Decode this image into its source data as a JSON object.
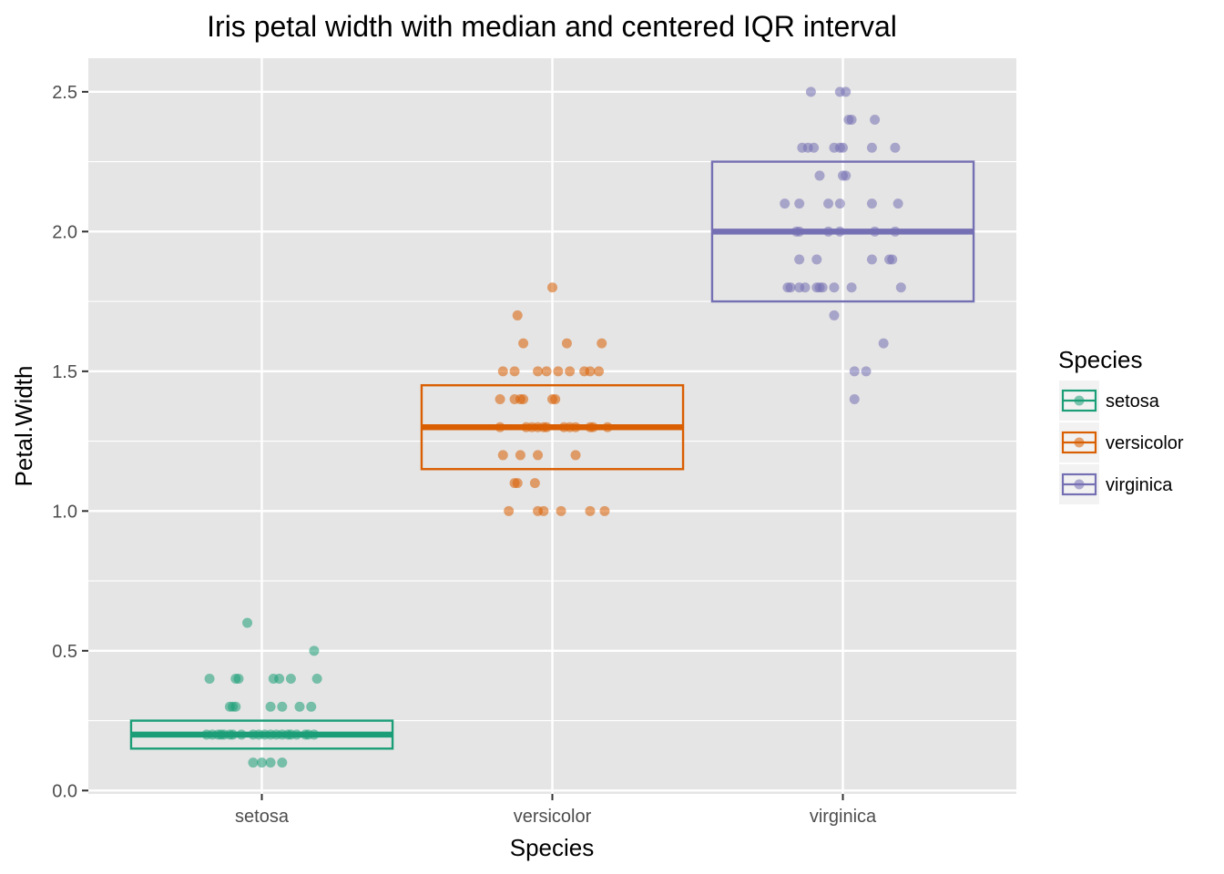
{
  "chart_data": {
    "type": "scatter",
    "title": "Iris petal width with median and centered IQR interval",
    "xlabel": "Species",
    "ylabel": "Petal.Width",
    "categories": [
      "setosa",
      "versicolor",
      "virginica"
    ],
    "ylim": [
      -0.012,
      2.62
    ],
    "yticks": [
      0.0,
      0.5,
      1.0,
      1.5,
      2.0,
      2.5
    ],
    "ytick_labels": [
      "0.0",
      "0.5",
      "1.0",
      "1.5",
      "2.0",
      "2.5"
    ],
    "grid": true,
    "legend": {
      "title": "Species",
      "position": "right"
    },
    "colors": {
      "setosa": "#1b9e77",
      "versicolor": "#d95f02",
      "virginica": "#7570b3",
      "panel": "#e5e5e5",
      "grid": "#ffffff"
    },
    "series": [
      {
        "name": "setosa",
        "summary": {
          "median": 0.2,
          "low": 0.15,
          "high": 0.25
        },
        "points": [
          [
            -0.18,
            0.4
          ],
          [
            -0.09,
            0.4
          ],
          [
            -0.08,
            0.4
          ],
          [
            0.04,
            0.4
          ],
          [
            0.06,
            0.4
          ],
          [
            0.1,
            0.4
          ],
          [
            0.19,
            0.4
          ],
          [
            -0.05,
            0.6
          ],
          [
            0.18,
            0.5
          ],
          [
            -0.11,
            0.3
          ],
          [
            -0.1,
            0.3
          ],
          [
            -0.09,
            0.3
          ],
          [
            0.03,
            0.3
          ],
          [
            0.07,
            0.3
          ],
          [
            0.13,
            0.3
          ],
          [
            0.17,
            0.3
          ],
          [
            -0.19,
            0.2
          ],
          [
            -0.17,
            0.2
          ],
          [
            -0.15,
            0.2
          ],
          [
            -0.14,
            0.2
          ],
          [
            -0.13,
            0.2
          ],
          [
            -0.11,
            0.2
          ],
          [
            -0.1,
            0.2
          ],
          [
            -0.07,
            0.2
          ],
          [
            -0.03,
            0.2
          ],
          [
            -0.01,
            0.2
          ],
          [
            0.01,
            0.2
          ],
          [
            0.03,
            0.2
          ],
          [
            0.05,
            0.2
          ],
          [
            0.07,
            0.2
          ],
          [
            0.09,
            0.2
          ],
          [
            0.1,
            0.2
          ],
          [
            0.12,
            0.2
          ],
          [
            0.15,
            0.2
          ],
          [
            0.16,
            0.2
          ],
          [
            0.18,
            0.2
          ],
          [
            -0.03,
            0.1
          ],
          [
            0.0,
            0.1
          ],
          [
            0.03,
            0.1
          ],
          [
            0.07,
            0.1
          ]
        ]
      },
      {
        "name": "versicolor",
        "summary": {
          "median": 1.3,
          "low": 1.15,
          "high": 1.45
        },
        "points": [
          [
            -0.12,
            1.7
          ],
          [
            -0.1,
            1.6
          ],
          [
            0.05,
            1.6
          ],
          [
            0.17,
            1.6
          ],
          [
            0.0,
            1.8
          ],
          [
            -0.17,
            1.5
          ],
          [
            -0.13,
            1.5
          ],
          [
            -0.05,
            1.5
          ],
          [
            -0.02,
            1.5
          ],
          [
            0.02,
            1.5
          ],
          [
            0.06,
            1.5
          ],
          [
            0.11,
            1.5
          ],
          [
            0.13,
            1.5
          ],
          [
            0.16,
            1.5
          ],
          [
            -0.18,
            1.4
          ],
          [
            -0.13,
            1.4
          ],
          [
            -0.11,
            1.4
          ],
          [
            -0.1,
            1.4
          ],
          [
            0.0,
            1.4
          ],
          [
            0.01,
            1.4
          ],
          [
            -0.18,
            1.3
          ],
          [
            -0.09,
            1.3
          ],
          [
            -0.07,
            1.3
          ],
          [
            -0.05,
            1.3
          ],
          [
            -0.03,
            1.3
          ],
          [
            -0.02,
            1.3
          ],
          [
            0.04,
            1.3
          ],
          [
            0.06,
            1.3
          ],
          [
            0.08,
            1.3
          ],
          [
            0.13,
            1.3
          ],
          [
            0.14,
            1.3
          ],
          [
            0.19,
            1.3
          ],
          [
            -0.17,
            1.2
          ],
          [
            -0.11,
            1.2
          ],
          [
            -0.05,
            1.2
          ],
          [
            0.08,
            1.2
          ],
          [
            -0.13,
            1.1
          ],
          [
            -0.12,
            1.1
          ],
          [
            -0.06,
            1.1
          ],
          [
            -0.15,
            1.0
          ],
          [
            -0.05,
            1.0
          ],
          [
            -0.03,
            1.0
          ],
          [
            0.03,
            1.0
          ],
          [
            0.13,
            1.0
          ],
          [
            0.18,
            1.0
          ]
        ]
      },
      {
        "name": "virginica",
        "summary": {
          "median": 2.0,
          "low": 1.75,
          "high": 2.25
        },
        "points": [
          [
            -0.11,
            2.5
          ],
          [
            -0.01,
            2.5
          ],
          [
            0.01,
            2.5
          ],
          [
            0.02,
            2.4
          ],
          [
            0.03,
            2.4
          ],
          [
            0.11,
            2.4
          ],
          [
            -0.14,
            2.3
          ],
          [
            -0.12,
            2.3
          ],
          [
            -0.1,
            2.3
          ],
          [
            -0.03,
            2.3
          ],
          [
            -0.01,
            2.3
          ],
          [
            0.0,
            2.3
          ],
          [
            0.1,
            2.3
          ],
          [
            0.18,
            2.3
          ],
          [
            -0.08,
            2.2
          ],
          [
            0.0,
            2.2
          ],
          [
            0.01,
            2.2
          ],
          [
            -0.2,
            2.1
          ],
          [
            -0.15,
            2.1
          ],
          [
            -0.05,
            2.1
          ],
          [
            -0.01,
            2.1
          ],
          [
            0.1,
            2.1
          ],
          [
            0.19,
            2.1
          ],
          [
            -0.16,
            2.0
          ],
          [
            -0.15,
            2.0
          ],
          [
            -0.05,
            2.0
          ],
          [
            -0.01,
            2.0
          ],
          [
            0.11,
            2.0
          ],
          [
            0.18,
            2.0
          ],
          [
            -0.15,
            1.9
          ],
          [
            -0.09,
            1.9
          ],
          [
            0.1,
            1.9
          ],
          [
            0.16,
            1.9
          ],
          [
            0.17,
            1.9
          ],
          [
            -0.19,
            1.8
          ],
          [
            -0.18,
            1.8
          ],
          [
            -0.15,
            1.8
          ],
          [
            -0.13,
            1.8
          ],
          [
            -0.09,
            1.8
          ],
          [
            -0.08,
            1.8
          ],
          [
            -0.07,
            1.8
          ],
          [
            -0.03,
            1.8
          ],
          [
            0.03,
            1.8
          ],
          [
            0.2,
            1.8
          ],
          [
            -0.03,
            1.7
          ],
          [
            0.14,
            1.6
          ],
          [
            0.04,
            1.5
          ],
          [
            0.08,
            1.5
          ],
          [
            0.04,
            1.4
          ]
        ]
      }
    ]
  }
}
